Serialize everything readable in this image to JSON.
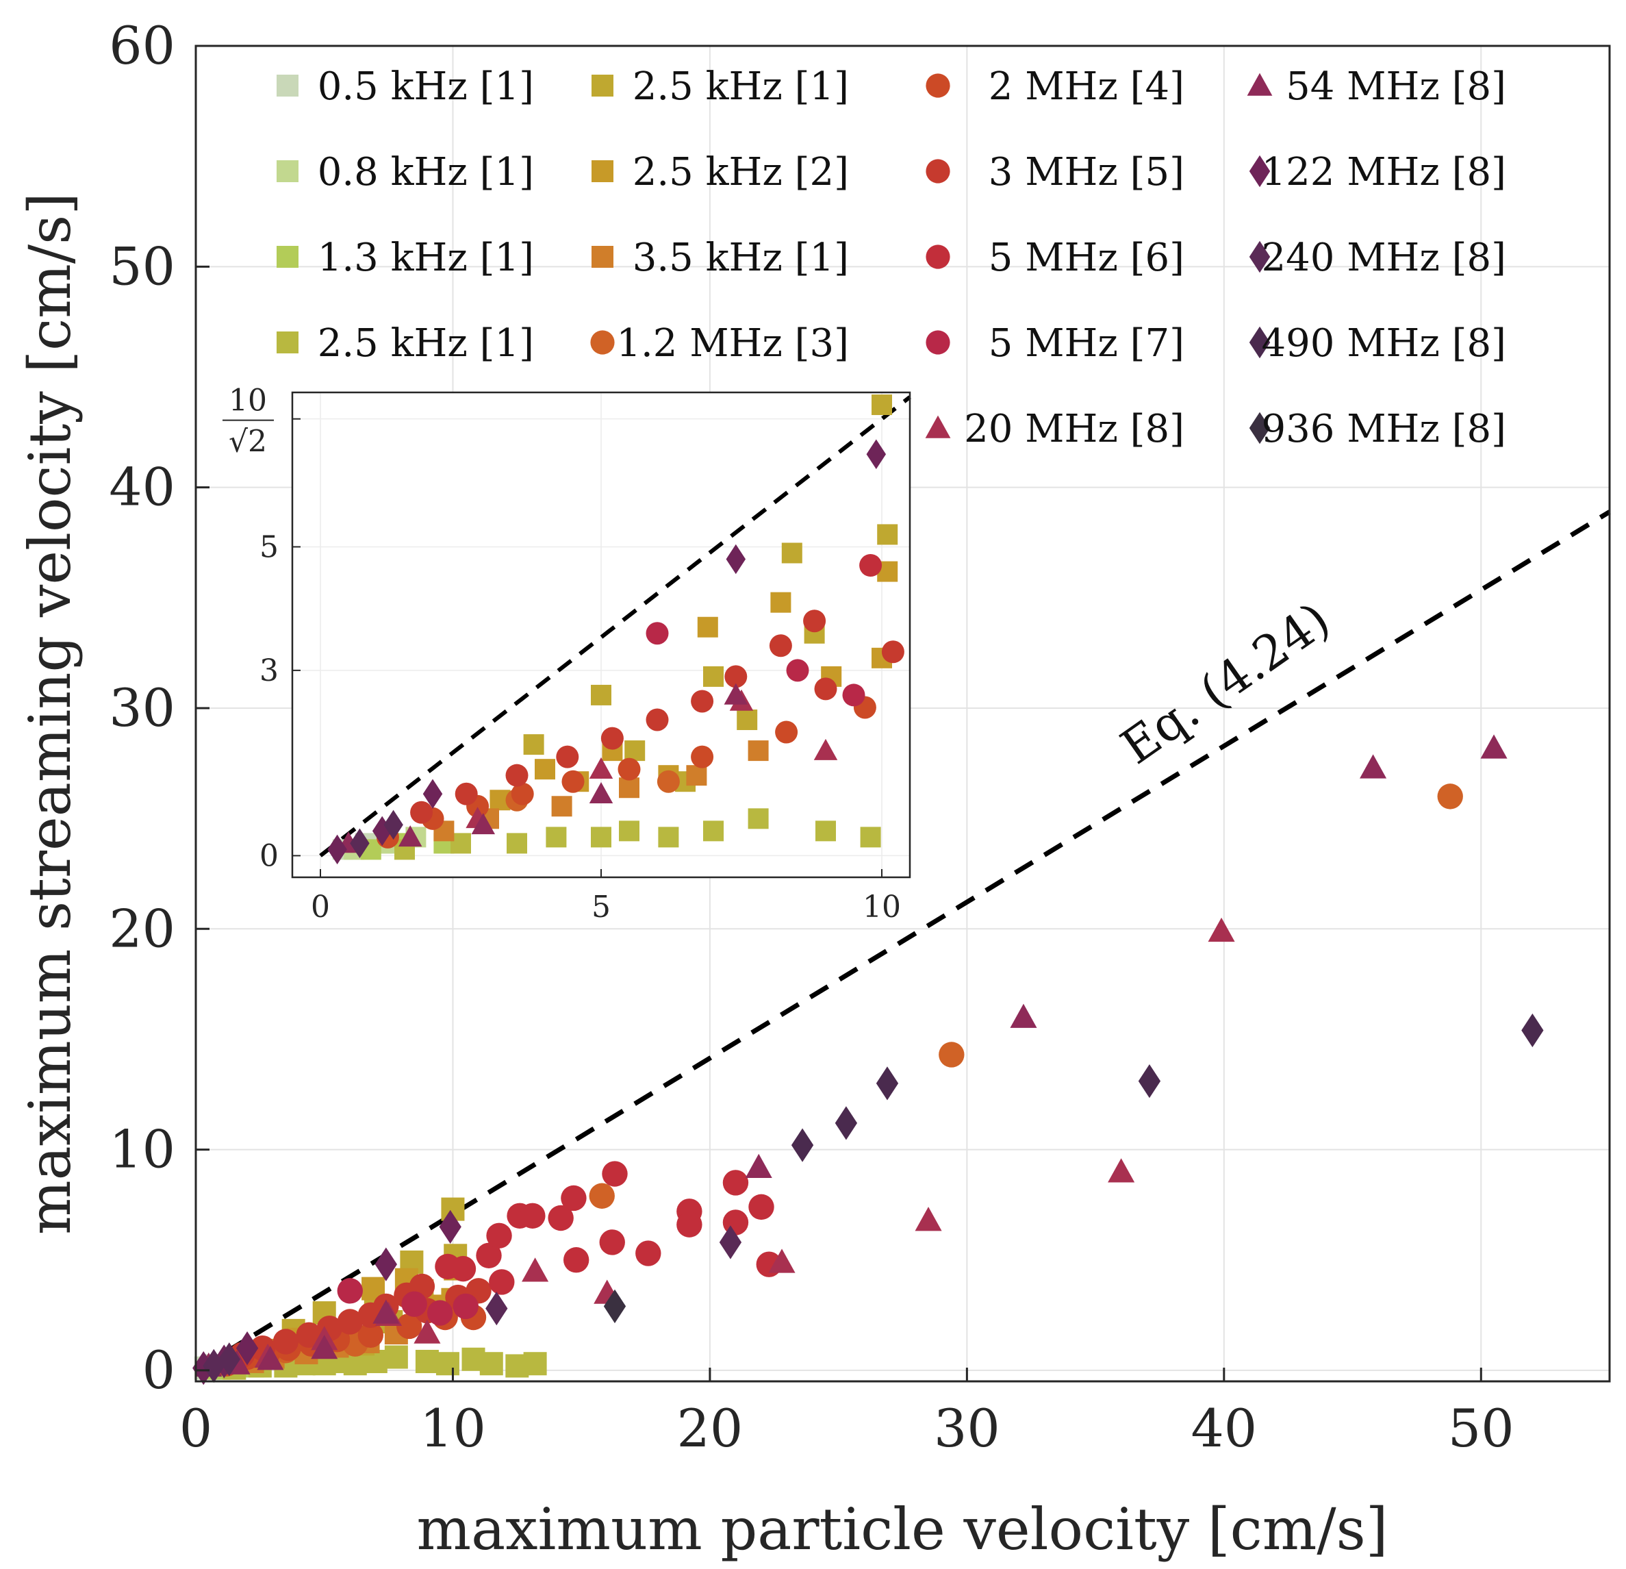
{
  "chart_data": {
    "type": "scatter",
    "xlabel": "maximum particle velocity [cm/s]",
    "ylabel": "maximum streaming velocity [cm/s]",
    "xlim": [
      0,
      55
    ],
    "ylim": [
      -0.5,
      60
    ],
    "xticks": [
      "0",
      "10",
      "20",
      "30",
      "40",
      "50"
    ],
    "yticks": [
      "0",
      "10",
      "20",
      "30",
      "40",
      "50",
      "60"
    ],
    "grid": true,
    "legend_position": "top",
    "annotation": "Eq. (4.24)",
    "reference_line": {
      "style": "dashed",
      "color": "#000000",
      "slope": 0.7071
    },
    "series": [
      {
        "name": "0.5 kHz [1]",
        "marker": "square",
        "color": "#c9d8b8",
        "points": [
          [
            0.4,
            0.1
          ],
          [
            0.8,
            0.2
          ],
          [
            1.1,
            0.2
          ]
        ]
      },
      {
        "name": "0.8 kHz [1]",
        "marker": "square",
        "color": "#c2d88f",
        "points": [
          [
            0.6,
            0.1
          ],
          [
            1.2,
            0.2
          ],
          [
            1.7,
            0.3
          ]
        ]
      },
      {
        "name": "1.3 kHz [1]",
        "marker": "square",
        "color": "#b3cc58",
        "points": [
          [
            0.9,
            0.1
          ],
          [
            1.5,
            0.2
          ],
          [
            2.2,
            0.2
          ]
        ]
      },
      {
        "name": "2.5 kHz [1]",
        "marker": "square",
        "color": "#b8b840",
        "points": [
          [
            1.5,
            0.1
          ],
          [
            2.5,
            0.2
          ],
          [
            3.5,
            0.2
          ],
          [
            4.2,
            0.3
          ],
          [
            5.0,
            0.3
          ],
          [
            5.5,
            0.4
          ],
          [
            6.2,
            0.3
          ],
          [
            7.0,
            0.4
          ],
          [
            7.8,
            0.6
          ],
          [
            9.0,
            0.4
          ],
          [
            9.8,
            0.3
          ],
          [
            10.8,
            0.5
          ],
          [
            11.5,
            0.3
          ],
          [
            12.5,
            0.2
          ],
          [
            13.2,
            0.3
          ]
        ]
      },
      {
        "name": "2.5 kHz [1]",
        "marker": "square",
        "color": "#bfa830",
        "points": [
          [
            3.8,
            1.8
          ],
          [
            5.0,
            2.6
          ],
          [
            5.6,
            1.7
          ],
          [
            6.5,
            1.2
          ],
          [
            7.0,
            2.9
          ],
          [
            7.6,
            2.2
          ],
          [
            8.4,
            4.9
          ],
          [
            8.8,
            3.6
          ],
          [
            10.0,
            7.3
          ],
          [
            10.1,
            5.2
          ]
        ]
      },
      {
        "name": "2.5 kHz [2]",
        "marker": "square",
        "color": "#c79a28",
        "points": [
          [
            3.2,
            0.9
          ],
          [
            4.0,
            1.4
          ],
          [
            4.6,
            1.2
          ],
          [
            5.2,
            1.7
          ],
          [
            6.2,
            1.3
          ],
          [
            6.9,
            3.7
          ],
          [
            8.2,
            4.1
          ],
          [
            9.1,
            2.9
          ],
          [
            10.0,
            3.2
          ],
          [
            10.1,
            4.6
          ]
        ]
      },
      {
        "name": "3.5 kHz [1]",
        "marker": "square",
        "color": "#d07e2a",
        "points": [
          [
            2.2,
            0.4
          ],
          [
            3.0,
            0.6
          ],
          [
            4.3,
            0.8
          ],
          [
            5.5,
            1.1
          ],
          [
            6.7,
            1.3
          ],
          [
            7.8,
            1.7
          ]
        ]
      },
      {
        "name": "1.2 MHz [3]",
        "marker": "circle",
        "color": "#d06226",
        "points": [
          [
            3.5,
            0.9
          ],
          [
            6.2,
            1.2
          ],
          [
            15.8,
            7.9
          ],
          [
            29.4,
            14.3
          ],
          [
            48.8,
            26.0
          ]
        ]
      },
      {
        "name": "2 MHz [4]",
        "marker": "circle",
        "color": "#cc4a26",
        "points": [
          [
            1.2,
            0.3
          ],
          [
            2.0,
            0.6
          ],
          [
            2.8,
            0.8
          ],
          [
            3.6,
            1.0
          ],
          [
            4.5,
            1.2
          ],
          [
            5.5,
            1.4
          ],
          [
            6.8,
            1.6
          ],
          [
            8.3,
            2.0
          ],
          [
            9.7,
            2.4
          ],
          [
            10.8,
            2.4
          ]
        ]
      },
      {
        "name": "3 MHz [5]",
        "marker": "circle",
        "color": "#c63a2e",
        "points": [
          [
            1.8,
            0.7
          ],
          [
            2.6,
            1.0
          ],
          [
            3.5,
            1.3
          ],
          [
            4.4,
            1.6
          ],
          [
            5.2,
            1.9
          ],
          [
            6.0,
            2.2
          ],
          [
            6.8,
            2.5
          ],
          [
            7.4,
            2.9
          ],
          [
            8.2,
            3.4
          ],
          [
            8.8,
            3.8
          ],
          [
            9.0,
            2.7
          ],
          [
            10.2,
            3.3
          ],
          [
            11.0,
            3.6
          ]
        ]
      },
      {
        "name": "5 MHz [6]",
        "marker": "circle",
        "color": "#c22e3a",
        "points": [
          [
            9.8,
            4.7
          ],
          [
            10.4,
            4.6
          ],
          [
            11.4,
            5.2
          ],
          [
            11.8,
            6.1
          ],
          [
            12.6,
            7.0
          ],
          [
            13.1,
            7.0
          ],
          [
            14.2,
            6.9
          ],
          [
            14.7,
            7.8
          ],
          [
            16.3,
            8.9
          ],
          [
            19.2,
            7.2
          ],
          [
            19.2,
            6.6
          ],
          [
            21.0,
            8.5
          ],
          [
            21.0,
            6.7
          ],
          [
            22.0,
            7.4
          ],
          [
            22.3,
            4.8
          ],
          [
            14.8,
            5.0
          ],
          [
            16.2,
            5.8
          ],
          [
            17.6,
            5.3
          ],
          [
            11.9,
            4.0
          ]
        ]
      },
      {
        "name": "5 MHz [7]",
        "marker": "circle",
        "color": "#b82848",
        "points": [
          [
            6.0,
            3.6
          ],
          [
            8.5,
            3.0
          ],
          [
            9.5,
            2.6
          ],
          [
            10.5,
            2.9
          ]
        ]
      },
      {
        "name": "20 MHz [8]",
        "marker": "triangle",
        "color": "#a83050",
        "points": [
          [
            2.8,
            0.6
          ],
          [
            5.0,
            1.4
          ],
          [
            7.5,
            2.5
          ],
          [
            9.0,
            1.7
          ],
          [
            16.0,
            3.5
          ],
          [
            13.2,
            4.5
          ],
          [
            22.8,
            4.9
          ],
          [
            28.5,
            6.8
          ],
          [
            36.0,
            9.0
          ],
          [
            39.9,
            19.9
          ]
        ]
      },
      {
        "name": "54 MHz [8]",
        "marker": "triangle",
        "color": "#8e2a58",
        "points": [
          [
            0.5,
            0.2
          ],
          [
            1.6,
            0.3
          ],
          [
            2.9,
            0.5
          ],
          [
            5.0,
            1.0
          ],
          [
            7.4,
            2.6
          ],
          [
            21.9,
            9.2
          ],
          [
            32.2,
            16.0
          ],
          [
            45.8,
            27.3
          ],
          [
            50.5,
            28.2
          ]
        ]
      },
      {
        "name": "122 MHz [8]",
        "marker": "diamond",
        "color": "#6e2458",
        "points": [
          [
            0.3,
            0.1
          ],
          [
            1.1,
            0.4
          ],
          [
            2.0,
            1.0
          ],
          [
            7.4,
            4.8
          ],
          [
            9.9,
            6.5
          ]
        ]
      },
      {
        "name": "240 MHz [8]",
        "marker": "diamond",
        "color": "#5a2a56",
        "points": [
          [
            0.7,
            0.2
          ],
          [
            1.3,
            0.5
          ],
          [
            11.7,
            2.8
          ],
          [
            20.8,
            5.8
          ]
        ]
      },
      {
        "name": "490 MHz [8]",
        "marker": "diamond",
        "color": "#4a2a4e",
        "points": [
          [
            23.6,
            10.2
          ],
          [
            25.3,
            11.2
          ],
          [
            26.9,
            13.0
          ],
          [
            37.1,
            13.1
          ],
          [
            52.0,
            15.4
          ]
        ]
      },
      {
        "name": "936 MHz [8]",
        "marker": "diamond",
        "color": "#3a3040",
        "points": [
          [
            16.3,
            2.9
          ]
        ]
      }
    ],
    "inset": {
      "xlim": [
        -0.5,
        10.5
      ],
      "ylim": [
        -0.35,
        7.5
      ],
      "xticks": [
        "0",
        "5",
        "10"
      ],
      "yticks": [
        "0",
        "3",
        "5",
        "10/√2"
      ],
      "reference_line": {
        "style": "dashed",
        "color": "#000000"
      }
    }
  }
}
